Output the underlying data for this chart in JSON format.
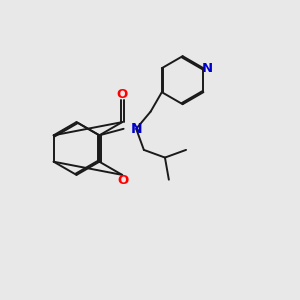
{
  "bg_color": "#e8e8e8",
  "bond_color": "#1a1a1a",
  "o_color": "#ff0000",
  "n_color": "#0000cd",
  "lw": 1.4,
  "dbo": 0.055,
  "figsize": [
    3.0,
    3.0
  ],
  "dpi": 100,
  "xlim": [
    0,
    10
  ],
  "ylim": [
    0,
    10
  ],
  "r_benz": 0.88,
  "r_chrom": 0.88,
  "r_pyr": 0.8,
  "bcx": 2.55,
  "bcy": 5.05
}
